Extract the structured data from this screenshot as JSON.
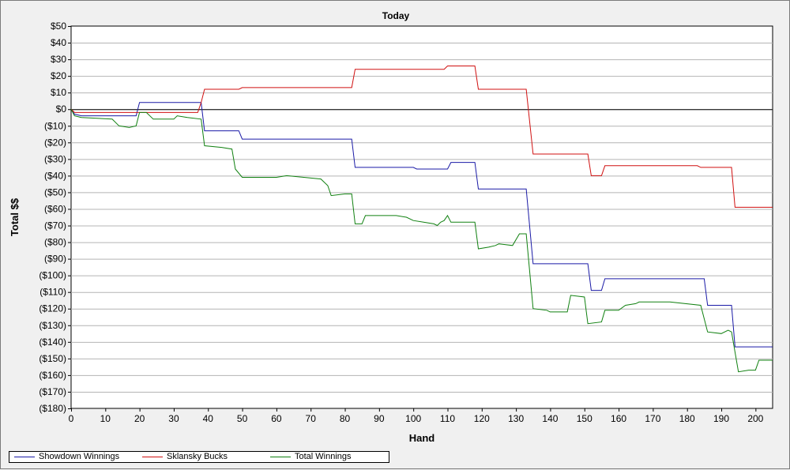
{
  "chart_data": {
    "type": "line",
    "title": "Today",
    "xlabel": "Hand",
    "ylabel": "Total $$",
    "xlim": [
      0,
      205
    ],
    "ylim": [
      -180,
      50
    ],
    "x_ticks": [
      0,
      10,
      20,
      30,
      40,
      50,
      60,
      70,
      80,
      90,
      100,
      110,
      120,
      130,
      140,
      150,
      160,
      170,
      180,
      190,
      200
    ],
    "x_tick_labels": [
      "0",
      "10",
      "20",
      "30",
      "40",
      "50",
      "60",
      "70",
      "80",
      "90",
      "100",
      "110",
      "120",
      "130",
      "140",
      "150",
      "160",
      "170",
      "180",
      "190",
      "200"
    ],
    "y_ticks": [
      50,
      40,
      30,
      20,
      10,
      0,
      -10,
      -20,
      -30,
      -40,
      -50,
      -60,
      -70,
      -80,
      -90,
      -100,
      -110,
      -120,
      -130,
      -140,
      -150,
      -160,
      -170,
      -180
    ],
    "y_tick_labels": [
      "$50",
      "$40",
      "$30",
      "$20",
      "$10",
      "$0",
      "($10)",
      "($20)",
      "($30)",
      "($40)",
      "($50)",
      "($60)",
      "($70)",
      "($80)",
      "($90)",
      "($100)",
      "($110)",
      "($120)",
      "($130)",
      "($140)",
      "($150)",
      "($160)",
      "($170)",
      "($180)"
    ],
    "grid": true,
    "legend_position": "bottom-left",
    "series": [
      {
        "name": "Showdown Winnings",
        "color": "#1a1aa6",
        "points": [
          [
            0,
            0
          ],
          [
            1,
            -3
          ],
          [
            3,
            -4
          ],
          [
            19,
            -4
          ],
          [
            20,
            4
          ],
          [
            38,
            4
          ],
          [
            39,
            -13
          ],
          [
            49,
            -13
          ],
          [
            50,
            -18
          ],
          [
            82,
            -18
          ],
          [
            83,
            -35
          ],
          [
            100,
            -35
          ],
          [
            101,
            -36
          ],
          [
            110,
            -36
          ],
          [
            111,
            -32
          ],
          [
            118,
            -32
          ],
          [
            119,
            -48
          ],
          [
            133,
            -48
          ],
          [
            135,
            -93
          ],
          [
            151,
            -93
          ],
          [
            152,
            -109
          ],
          [
            155,
            -109
          ],
          [
            156,
            -102
          ],
          [
            185,
            -102
          ],
          [
            186,
            -118
          ],
          [
            193,
            -118
          ],
          [
            194,
            -143
          ],
          [
            205,
            -143
          ]
        ]
      },
      {
        "name": "Sklansky Bucks",
        "color": "#d01010",
        "points": [
          [
            0,
            0
          ],
          [
            1,
            -2
          ],
          [
            37,
            -2
          ],
          [
            38,
            4
          ],
          [
            39,
            12
          ],
          [
            49,
            12
          ],
          [
            50,
            13
          ],
          [
            82,
            13
          ],
          [
            83,
            24
          ],
          [
            109,
            24
          ],
          [
            110,
            26
          ],
          [
            118,
            26
          ],
          [
            119,
            12
          ],
          [
            133,
            12
          ],
          [
            135,
            -27
          ],
          [
            151,
            -27
          ],
          [
            152,
            -40
          ],
          [
            155,
            -40
          ],
          [
            156,
            -34
          ],
          [
            183,
            -34
          ],
          [
            184,
            -35
          ],
          [
            193,
            -35
          ],
          [
            194,
            -59
          ],
          [
            205,
            -59
          ]
        ]
      },
      {
        "name": "Total Winnings",
        "color": "#108010",
        "points": [
          [
            0,
            0
          ],
          [
            1,
            -4
          ],
          [
            3,
            -5
          ],
          [
            12,
            -6
          ],
          [
            14,
            -10
          ],
          [
            17,
            -11
          ],
          [
            19,
            -10
          ],
          [
            20,
            -2
          ],
          [
            22,
            -2
          ],
          [
            24,
            -6
          ],
          [
            30,
            -6
          ],
          [
            31,
            -4
          ],
          [
            34,
            -5
          ],
          [
            38,
            -6
          ],
          [
            39,
            -22
          ],
          [
            44,
            -23
          ],
          [
            47,
            -24
          ],
          [
            48,
            -36
          ],
          [
            50,
            -41
          ],
          [
            58,
            -41
          ],
          [
            60,
            -41
          ],
          [
            63,
            -40
          ],
          [
            68,
            -41
          ],
          [
            73,
            -42
          ],
          [
            75,
            -46
          ],
          [
            76,
            -52
          ],
          [
            80,
            -51
          ],
          [
            82,
            -51
          ],
          [
            83,
            -69
          ],
          [
            85,
            -69
          ],
          [
            86,
            -64
          ],
          [
            95,
            -64
          ],
          [
            98,
            -65
          ],
          [
            100,
            -67
          ],
          [
            103,
            -68
          ],
          [
            106,
            -69
          ],
          [
            107,
            -70
          ],
          [
            108,
            -68
          ],
          [
            109,
            -67
          ],
          [
            110,
            -64
          ],
          [
            111,
            -68
          ],
          [
            118,
            -68
          ],
          [
            119,
            -84
          ],
          [
            122,
            -83
          ],
          [
            124,
            -82
          ],
          [
            125,
            -81
          ],
          [
            129,
            -82
          ],
          [
            131,
            -75
          ],
          [
            133,
            -75
          ],
          [
            135,
            -120
          ],
          [
            139,
            -121
          ],
          [
            140,
            -122
          ],
          [
            145,
            -122
          ],
          [
            146,
            -112
          ],
          [
            150,
            -113
          ],
          [
            151,
            -129
          ],
          [
            155,
            -128
          ],
          [
            156,
            -121
          ],
          [
            160,
            -121
          ],
          [
            162,
            -118
          ],
          [
            165,
            -117
          ],
          [
            166,
            -116
          ],
          [
            175,
            -116
          ],
          [
            184,
            -118
          ],
          [
            186,
            -134
          ],
          [
            190,
            -135
          ],
          [
            192,
            -133
          ],
          [
            193,
            -134
          ],
          [
            195,
            -158
          ],
          [
            198,
            -157
          ],
          [
            200,
            -157
          ],
          [
            201,
            -151
          ],
          [
            205,
            -151
          ]
        ]
      }
    ]
  }
}
